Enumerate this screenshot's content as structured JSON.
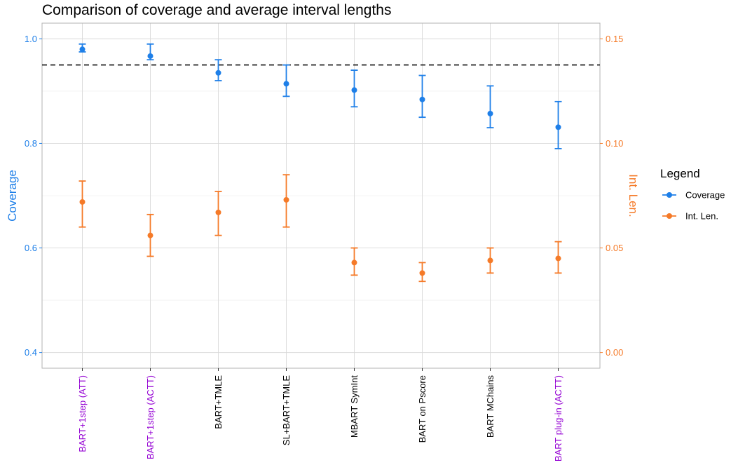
{
  "chart_data": {
    "type": "scatter",
    "title": "Comparison of coverage and average interval lengths",
    "categories": [
      "BART+1step (ATT)",
      "BART+1step (ACTT)",
      "BART+TMLE",
      "SL+BART+TMLE",
      "MBART SymInt",
      "BART on Pscore",
      "BART MChains",
      "BART plug-in (ACTT)"
    ],
    "category_colors": [
      "#9400D3",
      "#9400D3",
      "#000000",
      "#000000",
      "#000000",
      "#000000",
      "#000000",
      "#9400D3"
    ],
    "ylabel": "Coverage",
    "y2label": "Int. Len.",
    "ylim": [
      0.37,
      1.03
    ],
    "y2lim": [
      -0.0075,
      0.1575
    ],
    "yticks": [
      "0.4",
      "0.6",
      "0.8",
      "1.0"
    ],
    "y2ticks": [
      "0.00",
      "0.05",
      "0.10",
      "0.15"
    ],
    "reference_line": {
      "axis": "y",
      "value": 0.95,
      "style": "dashed"
    },
    "grid": true,
    "legend": {
      "title": "Legend",
      "position": "right"
    },
    "series": [
      {
        "name": "Coverage",
        "axis": "left",
        "color": "#1E7FE8",
        "values": [
          0.98,
          0.967,
          0.935,
          0.914,
          0.902,
          0.884,
          0.857,
          0.831
        ],
        "lower": [
          0.975,
          0.96,
          0.92,
          0.89,
          0.87,
          0.85,
          0.83,
          0.79
        ],
        "upper": [
          0.99,
          0.99,
          0.96,
          0.95,
          0.94,
          0.93,
          0.91,
          0.88
        ]
      },
      {
        "name": "Int. Len.",
        "axis": "right",
        "color": "#F57A28",
        "values": [
          0.072,
          0.056,
          0.067,
          0.073,
          0.043,
          0.038,
          0.044,
          0.045
        ],
        "lower": [
          0.06,
          0.046,
          0.056,
          0.06,
          0.037,
          0.034,
          0.038,
          0.038
        ],
        "upper": [
          0.082,
          0.066,
          0.077,
          0.085,
          0.05,
          0.043,
          0.05,
          0.053
        ]
      }
    ]
  }
}
